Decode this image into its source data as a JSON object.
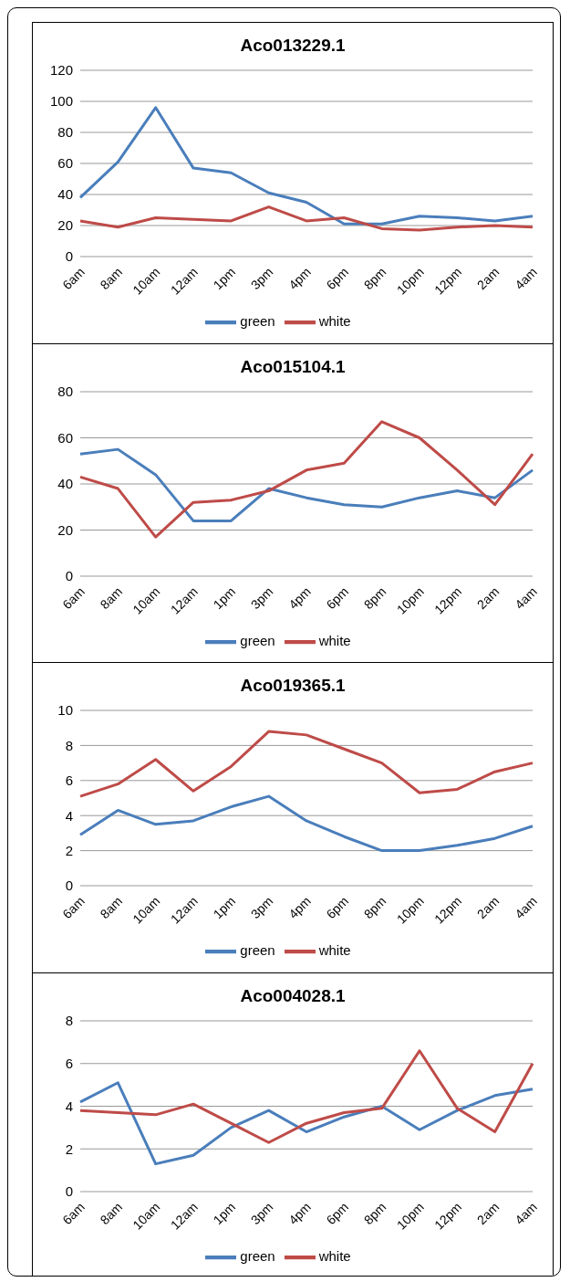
{
  "chart_data": [
    {
      "type": "line",
      "title": "Aco013229.1",
      "categories": [
        "6am",
        "8am",
        "10am",
        "12am",
        "1pm",
        "3pm",
        "4pm",
        "6pm",
        "8pm",
        "10pm",
        "12pm",
        "2am",
        "4am"
      ],
      "series": [
        {
          "name": "green",
          "color": "#4a7ebb",
          "values": [
            38,
            61,
            96,
            57,
            54,
            41,
            35,
            21,
            21,
            26,
            25,
            23,
            26
          ]
        },
        {
          "name": "white",
          "color": "#be4b48",
          "values": [
            23,
            19,
            25,
            24,
            23,
            32,
            23,
            25,
            18,
            17,
            19,
            20,
            19
          ]
        }
      ],
      "ylim": [
        0,
        120
      ],
      "yticks": [
        0,
        20,
        40,
        60,
        80,
        100,
        120
      ],
      "grid": "y",
      "legend": "bottom",
      "marker": "none",
      "line_style": "solid"
    },
    {
      "type": "line",
      "title": "Aco015104.1",
      "categories": [
        "6am",
        "8am",
        "10am",
        "12am",
        "1pm",
        "3pm",
        "4pm",
        "6pm",
        "8pm",
        "10pm",
        "12pm",
        "2am",
        "4am"
      ],
      "series": [
        {
          "name": "green",
          "color": "#4a7ebb",
          "values": [
            53,
            55,
            44,
            24,
            24,
            38,
            34,
            31,
            30,
            34,
            37,
            34,
            46
          ]
        },
        {
          "name": "white",
          "color": "#be4b48",
          "values": [
            43,
            38,
            17,
            32,
            33,
            37,
            46,
            49,
            67,
            60,
            46,
            31,
            53
          ]
        }
      ],
      "ylim": [
        0,
        80
      ],
      "yticks": [
        0,
        20,
        40,
        60,
        80
      ],
      "grid": "y",
      "legend": "bottom",
      "marker": "none",
      "line_style": "solid"
    },
    {
      "type": "line",
      "title": "Aco019365.1",
      "categories": [
        "6am",
        "8am",
        "10am",
        "12am",
        "1pm",
        "3pm",
        "4pm",
        "6pm",
        "8pm",
        "10pm",
        "12pm",
        "2am",
        "4am"
      ],
      "series": [
        {
          "name": "green",
          "color": "#4a7ebb",
          "values": [
            2.9,
            4.3,
            3.5,
            3.7,
            4.5,
            5.1,
            3.7,
            2.8,
            2.0,
            2.0,
            2.3,
            2.7,
            3.4
          ]
        },
        {
          "name": "white",
          "color": "#be4b48",
          "values": [
            5.1,
            5.8,
            7.2,
            5.4,
            6.8,
            8.8,
            8.6,
            7.8,
            7.0,
            5.3,
            5.5,
            6.5,
            7.0
          ]
        }
      ],
      "ylim": [
        0,
        10
      ],
      "yticks": [
        0,
        2,
        4,
        6,
        8,
        10
      ],
      "grid": "y",
      "legend": "bottom",
      "marker": "none",
      "line_style": "solid"
    },
    {
      "type": "line",
      "title": "Aco004028.1",
      "categories": [
        "6am",
        "8am",
        "10am",
        "12am",
        "1pm",
        "3pm",
        "4pm",
        "6pm",
        "8pm",
        "10pm",
        "12pm",
        "2am",
        "4am"
      ],
      "series": [
        {
          "name": "green",
          "color": "#4a7ebb",
          "values": [
            4.2,
            5.1,
            1.3,
            1.7,
            3.0,
            3.8,
            2.8,
            3.5,
            4.0,
            2.9,
            3.8,
            4.5,
            4.8
          ]
        },
        {
          "name": "white",
          "color": "#be4b48",
          "values": [
            3.8,
            3.7,
            3.6,
            4.1,
            3.2,
            2.3,
            3.2,
            3.7,
            3.9,
            6.6,
            3.9,
            2.8,
            6.0
          ]
        }
      ],
      "ylim": [
        0,
        8
      ],
      "yticks": [
        0,
        2,
        4,
        6,
        8
      ],
      "grid": "y",
      "legend": "bottom",
      "marker": "none",
      "line_style": "solid"
    }
  ]
}
